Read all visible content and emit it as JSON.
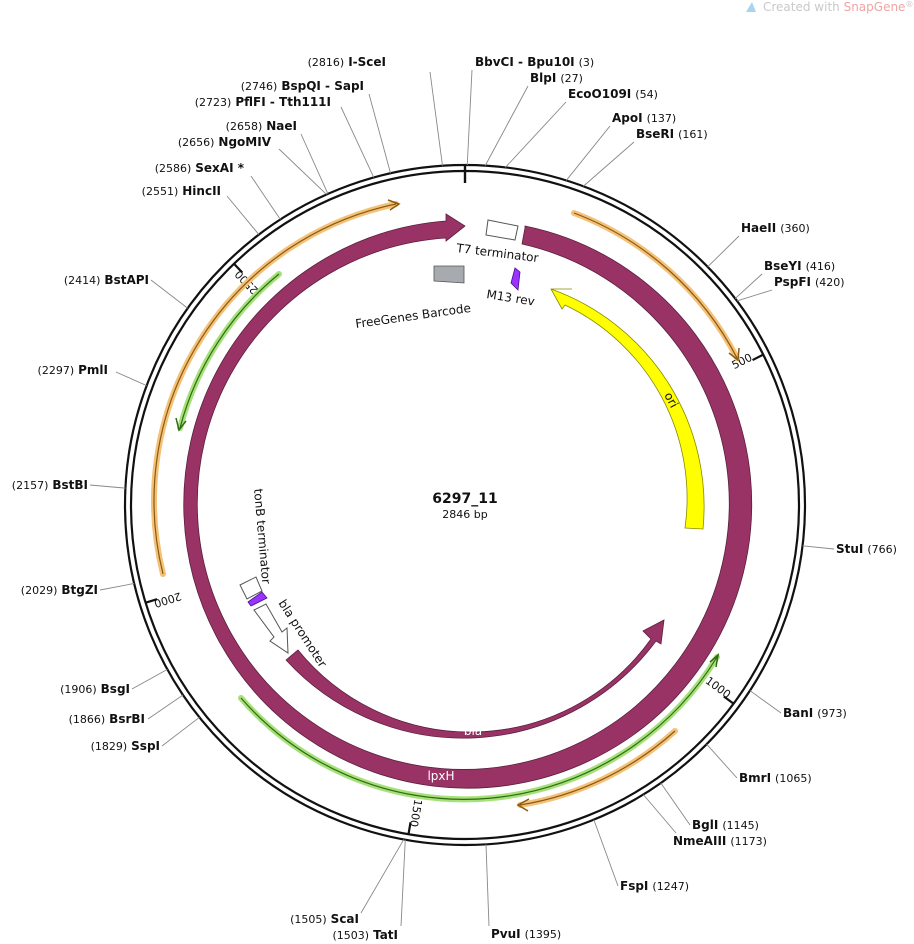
{
  "watermark": {
    "text": "Created with ",
    "brand": "SnapGene",
    "reg": "®",
    "icon": "snapgene-logo-icon",
    "brand_color": "#f0a4a4"
  },
  "plasmid": {
    "name": "6297_11",
    "length_label": "2846 bp",
    "length_bp": 2846
  },
  "colors": {
    "backbone": "#111111",
    "feature_maroon": "#993366",
    "ori_yellow": "#ffff00",
    "primer_purple": "#9933ff",
    "barcode_gray": "#a7aaae",
    "orange_arrow": "#f3c177",
    "green_arrow": "#a6e07a"
  },
  "ticks": [
    {
      "label": "500",
      "bp": 500
    },
    {
      "label": "1000",
      "bp": 1000
    },
    {
      "label": "1500",
      "bp": 1500
    },
    {
      "label": "2000",
      "bp": 2000
    },
    {
      "label": "2500",
      "bp": 2500
    }
  ],
  "enzymes": [
    {
      "id": "ecori-top",
      "names": [
        "I-SceI"
      ],
      "pos_text": "(2816)",
      "bp": 2816,
      "gray": false
    },
    {
      "id": "bbvci",
      "names": [
        "BbvCI",
        "Bpu10I"
      ],
      "pos_text": "(3)",
      "bp": 3,
      "gray": false
    },
    {
      "id": "blpi",
      "names": [
        "BlpI"
      ],
      "pos_text": "(27)",
      "bp": 27,
      "gray": false
    },
    {
      "id": "eco0109i",
      "names": [
        "EcoO109I"
      ],
      "pos_text": "(54)",
      "bp": 54,
      "gray": false
    },
    {
      "id": "apoi",
      "names": [
        "ApoI"
      ],
      "pos_text": "(137)",
      "bp": 137,
      "gray": false
    },
    {
      "id": "bseri",
      "names": [
        "BseRI"
      ],
      "pos_text": "(161)",
      "bp": 161,
      "gray": false
    },
    {
      "id": "haeii",
      "names": [
        "HaeII"
      ],
      "pos_text": "(360)",
      "bp": 360,
      "gray": false
    },
    {
      "id": "bseyi",
      "names": [
        "BseYI"
      ],
      "pos_text": "(416)",
      "bp": 416,
      "gray": false
    },
    {
      "id": "pspfi",
      "names": [
        "PspFI"
      ],
      "pos_text": "(420)",
      "bp": 420,
      "gray": false
    },
    {
      "id": "stui",
      "names": [
        "StuI"
      ],
      "pos_text": "(766)",
      "bp": 766,
      "gray": false
    },
    {
      "id": "bani",
      "names": [
        "BanI"
      ],
      "pos_text": "(973)",
      "bp": 973,
      "gray": false
    },
    {
      "id": "bmri",
      "names": [
        "BmrI"
      ],
      "pos_text": "(1065)",
      "bp": 1065,
      "gray": false
    },
    {
      "id": "bgli",
      "names": [
        "BglI"
      ],
      "pos_text": "(1145)",
      "bp": 1145,
      "gray": false
    },
    {
      "id": "nmeaiii",
      "names": [
        "NmeAIII"
      ],
      "pos_text": "(1173)",
      "bp": 1173,
      "gray": false
    },
    {
      "id": "fspi",
      "names": [
        "FspI"
      ],
      "pos_text": "(1247)",
      "bp": 1247,
      "gray": false
    },
    {
      "id": "pvui",
      "names": [
        "PvuI"
      ],
      "pos_text": "(1395)",
      "bp": 1395,
      "gray": false
    },
    {
      "id": "scai",
      "names": [
        "ScaI"
      ],
      "pos_text": "(1505)",
      "bp": 1505,
      "gray": false
    },
    {
      "id": "tati",
      "names": [
        "TatI"
      ],
      "pos_text": "(1503)",
      "bp": 1503,
      "gray": false
    },
    {
      "id": "sspi",
      "names": [
        "SspI"
      ],
      "pos_text": "(1829)",
      "bp": 1829,
      "gray": false
    },
    {
      "id": "bsrbi",
      "names": [
        "BsrBI"
      ],
      "pos_text": "(1866)",
      "bp": 1866,
      "gray": false
    },
    {
      "id": "bsgi",
      "names": [
        "BsgI"
      ],
      "pos_text": "(1906)",
      "bp": 1906,
      "gray": false
    },
    {
      "id": "btgzi",
      "names": [
        "BtgZI"
      ],
      "pos_text": "(2029)",
      "bp": 2029,
      "gray": false
    },
    {
      "id": "bstbi",
      "names": [
        "BstBI"
      ],
      "pos_text": "(2157)",
      "bp": 2157,
      "gray": false
    },
    {
      "id": "pmli",
      "names": [
        "PmlI"
      ],
      "pos_text": "(2297)",
      "bp": 2297,
      "gray": false
    },
    {
      "id": "bstapi",
      "names": [
        "BstAPI"
      ],
      "pos_text": "(2414)",
      "bp": 2414,
      "gray": false
    },
    {
      "id": "hincii",
      "names": [
        "HincII"
      ],
      "pos_text": "(2551)",
      "bp": 2551,
      "gray": false
    },
    {
      "id": "sexai",
      "names": [
        "SexAI *"
      ],
      "pos_text": "(2586)",
      "bp": 2586,
      "gray": true
    },
    {
      "id": "ngomiv",
      "names": [
        "NgoMIV"
      ],
      "pos_text": "(2656)",
      "bp": 2656,
      "gray": false
    },
    {
      "id": "naei",
      "names": [
        "NaeI"
      ],
      "pos_text": "(2658)",
      "bp": 2658,
      "gray": false
    },
    {
      "id": "pflfi",
      "names": [
        "PflFI",
        "Tth111I"
      ],
      "pos_text": "(2723)",
      "bp": 2723,
      "gray": false
    },
    {
      "id": "bspqi",
      "names": [
        "BspQI",
        "SapI"
      ],
      "pos_text": "(2746)",
      "bp": 2746,
      "gray": false
    }
  ],
  "features": {
    "t7_terminator": "T7 terminator",
    "m13_rev": "M13 rev",
    "freegenes_barcode": "FreeGenes Barcode",
    "ori": "ori",
    "tonb_terminator": "tonB terminator",
    "bla_promoter": "bla promoter",
    "bla": "bla",
    "lpxh": "lpxH"
  }
}
